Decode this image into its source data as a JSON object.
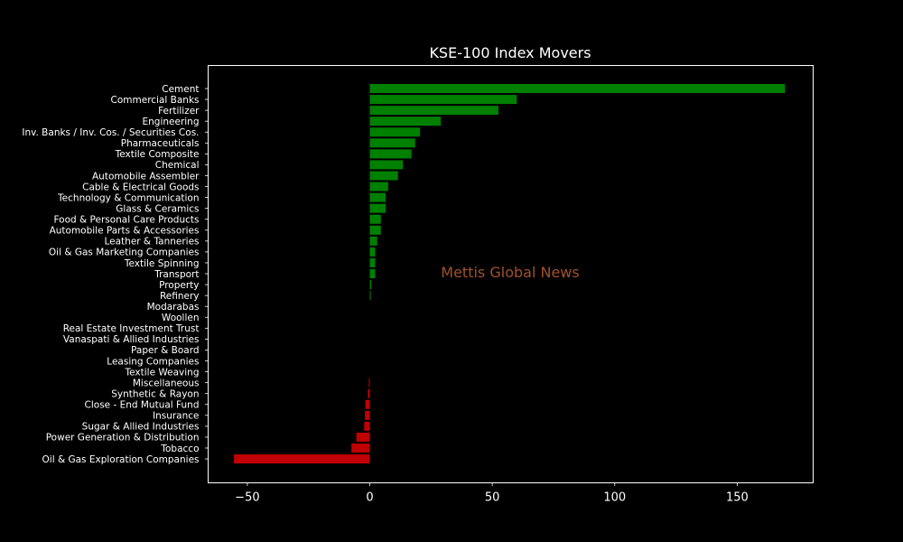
{
  "chart_data": {
    "type": "bar",
    "orientation": "horizontal",
    "title": "KSE-100 Index Movers",
    "xlabel": "",
    "ylabel": "",
    "xlim": [
      -66,
      181
    ],
    "xticks": [
      -50,
      0,
      50,
      100,
      150
    ],
    "xtick_labels": [
      "−50",
      "0",
      "50",
      "100",
      "150"
    ],
    "grid": false,
    "categories": [
      "Cement",
      "Commercial Banks",
      "Fertilizer",
      "Engineering",
      "Inv. Banks / Inv. Cos. / Securities Cos.",
      "Pharmaceuticals",
      "Textile Composite",
      "Chemical",
      "Automobile Assembler",
      "Cable & Electrical Goods",
      "Technology & Communication",
      "Glass & Ceramics",
      "Food & Personal Care Products",
      "Automobile Parts & Accessories",
      "Leather & Tanneries",
      "Oil & Gas Marketing Companies",
      "Textile Spinning",
      "Transport",
      "Property",
      "Refinery",
      "Modarabas",
      "Woollen",
      "Real Estate Investment Trust",
      "Vanaspati & Allied Industries",
      "Paper & Board",
      "Leasing Companies",
      "Textile Weaving",
      "Miscellaneous",
      "Synthetic & Rayon",
      "Close - End Mutual Fund",
      "Insurance",
      "Sugar & Allied Industries",
      "Power Generation & Distribution",
      "Tobacco",
      "Oil & Gas Exploration Companies"
    ],
    "values": [
      169.5,
      60.0,
      52.5,
      29.0,
      20.5,
      18.5,
      17.0,
      13.5,
      11.5,
      7.5,
      6.5,
      6.5,
      4.5,
      4.5,
      3.0,
      2.2,
      2.2,
      2.2,
      0.6,
      0.4,
      0,
      0,
      0,
      0,
      0,
      0,
      0,
      -0.4,
      -0.8,
      -1.8,
      -2.0,
      -2.3,
      -5.5,
      -7.5,
      -55.5
    ],
    "colors": {
      "positive": "#008000",
      "negative": "#c00000"
    }
  },
  "watermark": {
    "text": "Mettis Global News",
    "color": "#a0522d"
  },
  "colors": {
    "background": "#000000",
    "axis": "#ffffff",
    "text": "#ffffff"
  }
}
